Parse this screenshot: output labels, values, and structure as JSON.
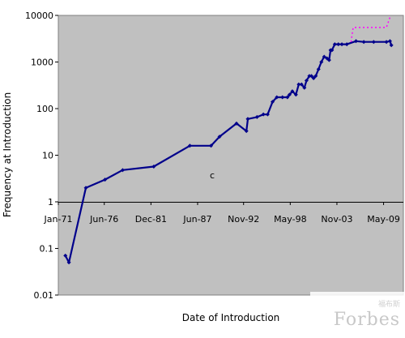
{
  "chart_data": {
    "type": "line",
    "xlabel": "Date of Introduction",
    "ylabel": "Frequency at Introduction",
    "yscale": "log",
    "ylim": [
      0.01,
      10000
    ],
    "xlim": [
      "1971-01",
      "2011-09"
    ],
    "yticks": [
      "0.01",
      "0.1",
      "1",
      "10",
      "100",
      "1000",
      "10000"
    ],
    "xticks": [
      {
        "label": "Jan-71",
        "date": "1971-01"
      },
      {
        "label": "Jun-76",
        "date": "1976-06"
      },
      {
        "label": "Dec-81",
        "date": "1981-12"
      },
      {
        "label": "Jun-87",
        "date": "1987-06"
      },
      {
        "label": "Nov-92",
        "date": "1992-11"
      },
      {
        "label": "May-98",
        "date": "1998-05"
      },
      {
        "label": "Nov-03",
        "date": "2003-11"
      },
      {
        "label": "May-09",
        "date": "2009-05"
      }
    ],
    "annotation": "c",
    "grid": false,
    "background": "#c0c0c0",
    "series": [
      {
        "color": "#00008b",
        "style": "solid",
        "points": [
          [
            "1971-11",
            0.07
          ],
          [
            "1972-04",
            0.05
          ],
          [
            "1974-04",
            2.0
          ],
          [
            "1976-07",
            3.0
          ],
          [
            "1978-08",
            4.8
          ],
          [
            "1982-04",
            5.7
          ],
          [
            "1986-07",
            16
          ],
          [
            "1989-01",
            16
          ],
          [
            "1990-01",
            25
          ],
          [
            "1992-01",
            48
          ],
          [
            "1993-03",
            33
          ],
          [
            "1993-05",
            60
          ],
          [
            "1994-06",
            66
          ],
          [
            "1995-03",
            75
          ],
          [
            "1995-09",
            75
          ],
          [
            "1996-04",
            140
          ],
          [
            "1996-10",
            175
          ],
          [
            "1997-06",
            175
          ],
          [
            "1998-01",
            175
          ],
          [
            "1998-04",
            200
          ],
          [
            "1998-08",
            235
          ],
          [
            "1999-01",
            200
          ],
          [
            "1999-05",
            330
          ],
          [
            "1999-09",
            330
          ],
          [
            "2000-01",
            280
          ],
          [
            "2000-04",
            400
          ],
          [
            "2000-08",
            500
          ],
          [
            "2000-11",
            500
          ],
          [
            "2001-02",
            450
          ],
          [
            "2001-05",
            500
          ],
          [
            "2001-09",
            700
          ],
          [
            "2002-01",
            1000
          ],
          [
            "2002-05",
            1300
          ],
          [
            "2002-09",
            1200
          ],
          [
            "2002-12",
            1100
          ],
          [
            "2003-02",
            1800
          ],
          [
            "2003-04",
            1800
          ],
          [
            "2003-08",
            2400
          ],
          [
            "2004-01",
            2400
          ],
          [
            "2004-06",
            2400
          ],
          [
            "2005-01",
            2400
          ],
          [
            "2006-02",
            2800
          ],
          [
            "2007-01",
            2700
          ],
          [
            "2008-03",
            2700
          ],
          [
            "2009-09",
            2700
          ],
          [
            "2010-02",
            2800
          ],
          [
            "2010-04",
            2300
          ]
        ]
      },
      {
        "color": "#ff00ff",
        "style": "dotted",
        "points": [
          [
            "2005-07",
            2700
          ],
          [
            "2005-10",
            5500
          ],
          [
            "2007-06",
            5500
          ],
          [
            "2009-09",
            5500
          ],
          [
            "2010-02",
            9000
          ]
        ]
      }
    ]
  }
}
